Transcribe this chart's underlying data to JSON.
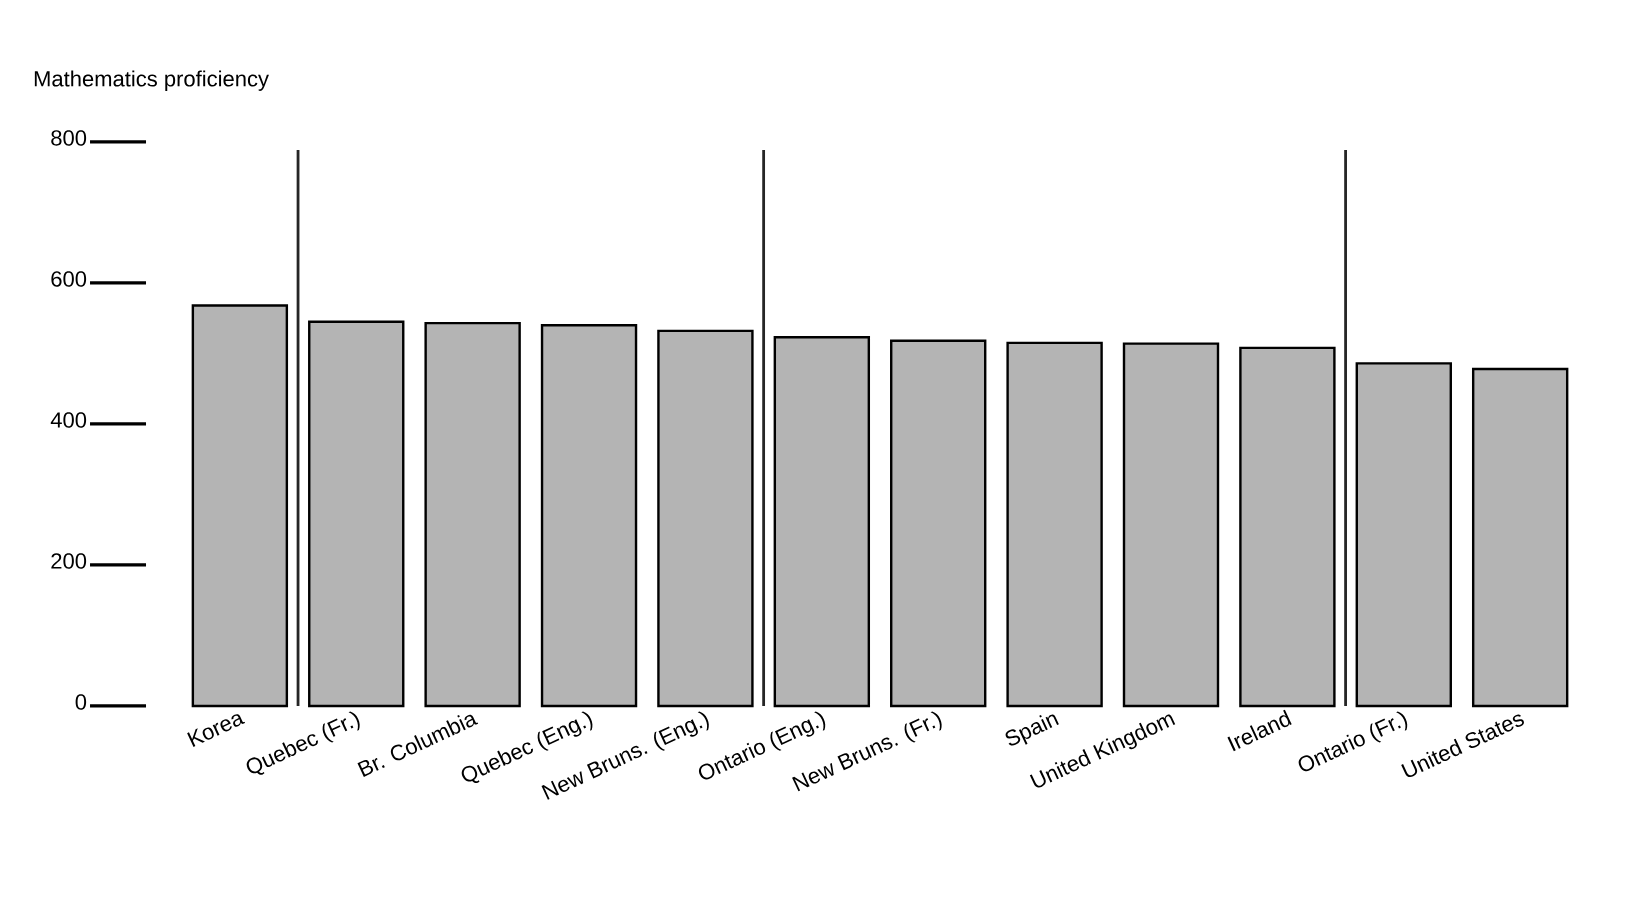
{
  "chart_data": {
    "type": "bar",
    "ylabel": "Mathematics proficiency",
    "categories": [
      "Korea",
      "Quebec (Fr.)",
      "Br. Columbia",
      "Quebec (Eng.)",
      "New Bruns. (Eng.)",
      "Ontario (Eng.)",
      "New Bruns. (Fr.)",
      "Spain",
      "United Kingdom",
      "Ireland",
      "Ontario (Fr.)",
      "United States"
    ],
    "values": [
      568,
      545,
      543,
      540,
      532,
      523,
      518,
      515,
      514,
      508,
      486,
      478
    ],
    "color": "#b4b4b4",
    "ylim": [
      0,
      800
    ],
    "yticks": [
      0,
      200,
      400,
      600,
      800
    ]
  }
}
